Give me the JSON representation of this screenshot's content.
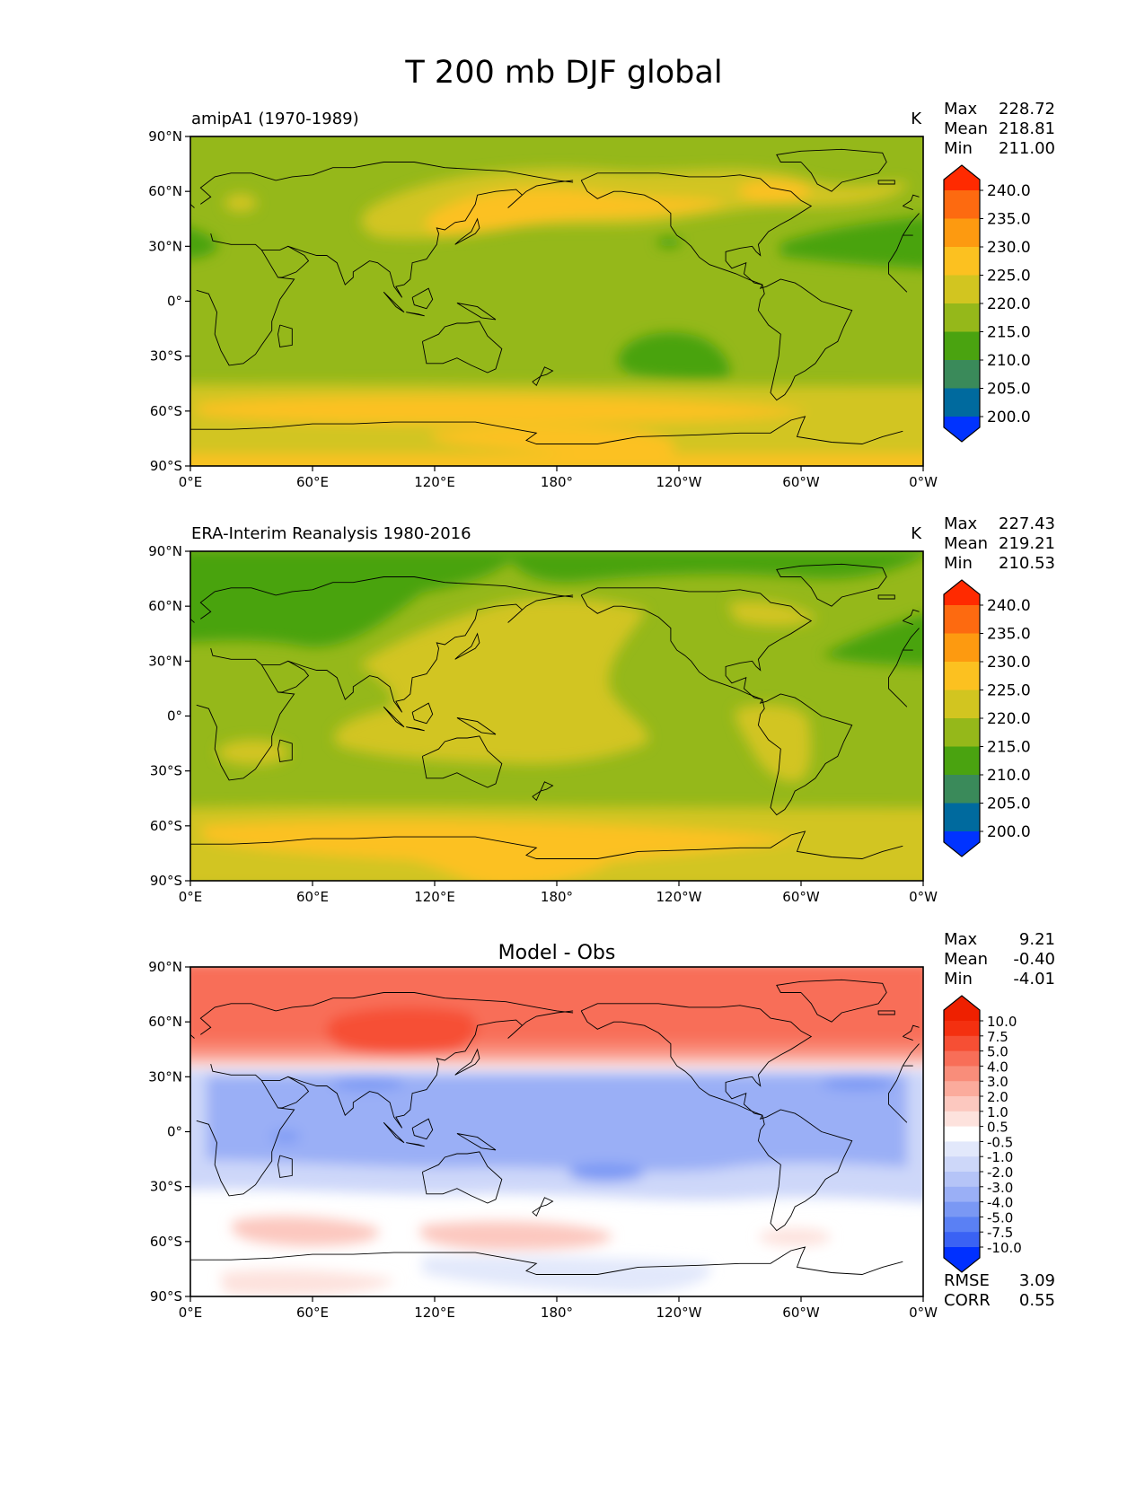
{
  "figure": {
    "title": "T 200 mb DJF global"
  },
  "chart_data": [
    {
      "type": "heatmap",
      "panel": "test",
      "title": "",
      "left_label": "amipA1 (1970-1989)",
      "units": "K",
      "stats": [
        {
          "label": "Max",
          "value": "228.72"
        },
        {
          "label": "Mean",
          "value": "218.81"
        },
        {
          "label": "Min",
          "value": "211.00"
        }
      ],
      "xticks": [
        "0°E",
        "60°E",
        "120°E",
        "180°",
        "120°W",
        "60°W",
        "0°W"
      ],
      "yticks": [
        "90°N",
        "60°N",
        "30°N",
        "0°",
        "30°S",
        "60°S",
        "90°S"
      ],
      "xlim": [
        0,
        360
      ],
      "ylim": [
        -90,
        90
      ],
      "colorbar": {
        "levels": [
          200,
          205,
          210,
          215,
          220,
          225,
          230,
          235,
          240
        ],
        "labels": [
          "200.0",
          "205.0",
          "210.0",
          "215.0",
          "220.0",
          "225.0",
          "230.0",
          "235.0",
          "240.0"
        ],
        "colors": [
          "#0033ff",
          "#006a9e",
          "#3a8a5a",
          "#4aa310",
          "#95b81a",
          "#d2c520",
          "#fcc120",
          "#fd9a10",
          "#fd6a10",
          "#ff2a00"
        ],
        "extend": "both"
      }
    },
    {
      "type": "heatmap",
      "panel": "reference",
      "title": "",
      "left_label": "ERA-Interim Reanalysis 1980-2016",
      "units": "K",
      "stats": [
        {
          "label": "Max",
          "value": "227.43"
        },
        {
          "label": "Mean",
          "value": "219.21"
        },
        {
          "label": "Min",
          "value": "210.53"
        }
      ],
      "xticks": [
        "0°E",
        "60°E",
        "120°E",
        "180°",
        "120°W",
        "60°W",
        "0°W"
      ],
      "yticks": [
        "90°N",
        "60°N",
        "30°N",
        "0°",
        "30°S",
        "60°S",
        "90°S"
      ],
      "xlim": [
        0,
        360
      ],
      "ylim": [
        -90,
        90
      ],
      "colorbar": {
        "levels": [
          200,
          205,
          210,
          215,
          220,
          225,
          230,
          235,
          240
        ],
        "labels": [
          "200.0",
          "205.0",
          "210.0",
          "215.0",
          "220.0",
          "225.0",
          "230.0",
          "235.0",
          "240.0"
        ],
        "colors": [
          "#0033ff",
          "#006a9e",
          "#3a8a5a",
          "#4aa310",
          "#95b81a",
          "#d2c520",
          "#fcc120",
          "#fd9a10",
          "#fd6a10",
          "#ff2a00"
        ],
        "extend": "both"
      }
    },
    {
      "type": "heatmap",
      "panel": "difference",
      "title": "Model - Obs",
      "left_label": "",
      "units": "",
      "stats": [
        {
          "label": "Max",
          "value": "9.21"
        },
        {
          "label": "Mean",
          "value": "-0.40"
        },
        {
          "label": "Min",
          "value": "-4.01"
        }
      ],
      "extra_stats": [
        {
          "label": "RMSE",
          "value": "3.09"
        },
        {
          "label": "CORR",
          "value": "0.55"
        }
      ],
      "xticks": [
        "0°E",
        "60°E",
        "120°E",
        "180°",
        "120°W",
        "60°W",
        "0°W"
      ],
      "yticks": [
        "90°N",
        "60°N",
        "30°N",
        "0°",
        "30°S",
        "60°S",
        "90°S"
      ],
      "xlim": [
        0,
        360
      ],
      "ylim": [
        -90,
        90
      ],
      "colorbar": {
        "levels": [
          -10,
          -7.5,
          -5,
          -4,
          -3,
          -2,
          -1,
          -0.5,
          0.5,
          1,
          2,
          3,
          4,
          5,
          7.5,
          10
        ],
        "labels": [
          "-10.0",
          "-7.5",
          "-5.0",
          "-4.0",
          "-3.0",
          "-2.0",
          "-1.0",
          "-0.5",
          "0.5",
          "1.0",
          "2.0",
          "3.0",
          "4.0",
          "5.0",
          "7.5",
          "10.0"
        ],
        "colors": [
          "#0030ff",
          "#3a62f4",
          "#5a80f4",
          "#7a98f4",
          "#9aaff6",
          "#b5c4f7",
          "#cdd7f9",
          "#e2e8fb",
          "#ffffff",
          "#fde2dd",
          "#fcc8bf",
          "#fbab9c",
          "#f98d7a",
          "#f86e58",
          "#f64f34",
          "#f43010",
          "#ee2000"
        ],
        "extend": "both"
      }
    }
  ]
}
